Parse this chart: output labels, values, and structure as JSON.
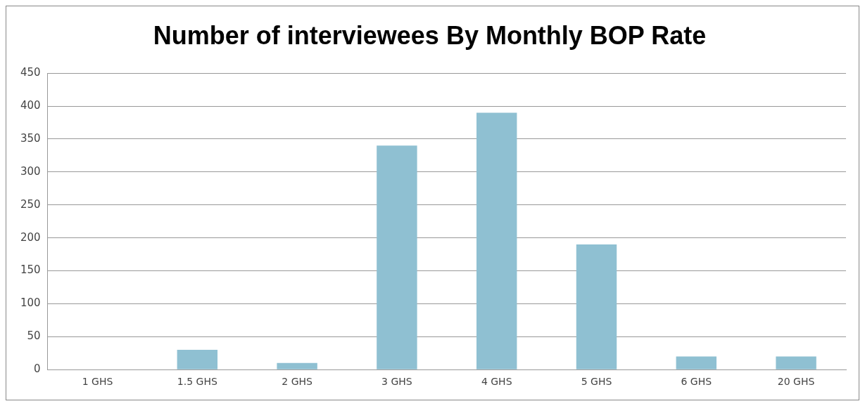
{
  "chart_data": {
    "type": "bar",
    "title": "Number of interviewees By Monthly BOP Rate",
    "categories": [
      "1 GHS",
      "1.5 GHS",
      "2 GHS",
      "3 GHS",
      "4 GHS",
      "5 GHS",
      "6 GHS",
      "20 GHS"
    ],
    "values": [
      0,
      30,
      10,
      340,
      390,
      190,
      20,
      20
    ],
    "color": "#8fc0d2",
    "ylim": [
      0,
      450
    ],
    "yticks": [
      0,
      50,
      100,
      150,
      200,
      250,
      300,
      350,
      400,
      450
    ],
    "grid": "y",
    "legend": false
  }
}
